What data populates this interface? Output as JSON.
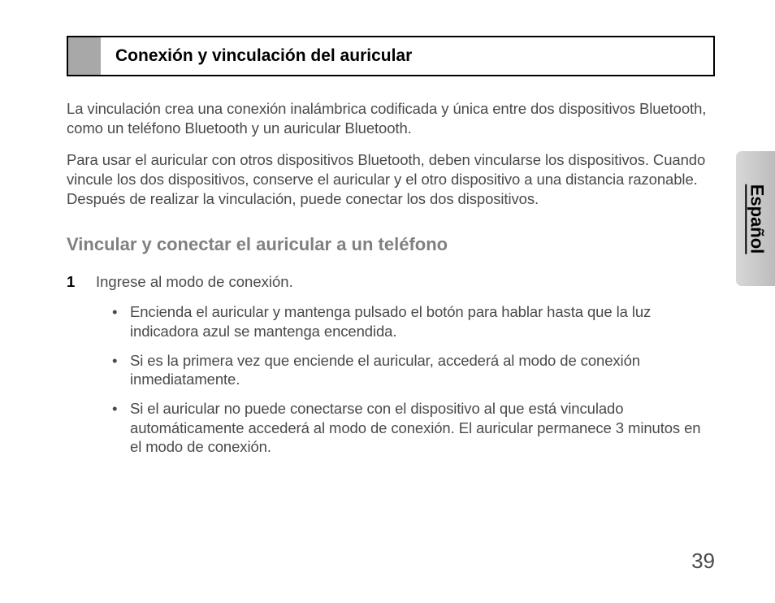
{
  "section": {
    "title": "Conexión y vinculación del auricular",
    "title_fontsize": 21,
    "border_color": "#000000",
    "gray_block_color": "#a8a8a8"
  },
  "paragraphs": [
    "La vinculación crea una conexión inalámbrica codificada y única entre dos dispositivos Bluetooth, como un teléfono Bluetooth y un auricular Bluetooth.",
    "Para usar el auricular con otros dispositivos Bluetooth, deben vincularse los dispositivos. Cuando vincule los dos dispositivos, conserve el auricular y el otro dispositivo a una distancia razonable. Después de realizar la vinculación, puede conectar los dos dispositivos."
  ],
  "subheading": "Vincular y conectar el auricular a un teléfono",
  "step": {
    "number": "1",
    "text": "Ingrese al modo de conexión."
  },
  "bullets": [
    "Encienda el auricular y mantenga pulsado el botón para hablar hasta que la luz indicadora azul se mantenga encendida.",
    "Si es la primera vez que enciende el auricular, accederá al modo de conexión inmediatamente.",
    "Si el auricular no puede conectarse con el dispositivo al que está vinculado automáticamente accederá al modo de conexión. El auricular permanece 3 minutos en el modo de conexión."
  ],
  "side_tab": {
    "label": "Español",
    "bg_gradient_from": "#d8d8d8",
    "bg_gradient_to": "#bcbcbc",
    "text_color": "#000000"
  },
  "page_number": "39",
  "colors": {
    "body_text": "#4a4a4a",
    "subheading": "#808080",
    "background": "#ffffff"
  },
  "typography": {
    "body_fontsize": 18.5,
    "subheading_fontsize": 22,
    "page_num_fontsize": 26
  },
  "bullet_glyph": "•"
}
